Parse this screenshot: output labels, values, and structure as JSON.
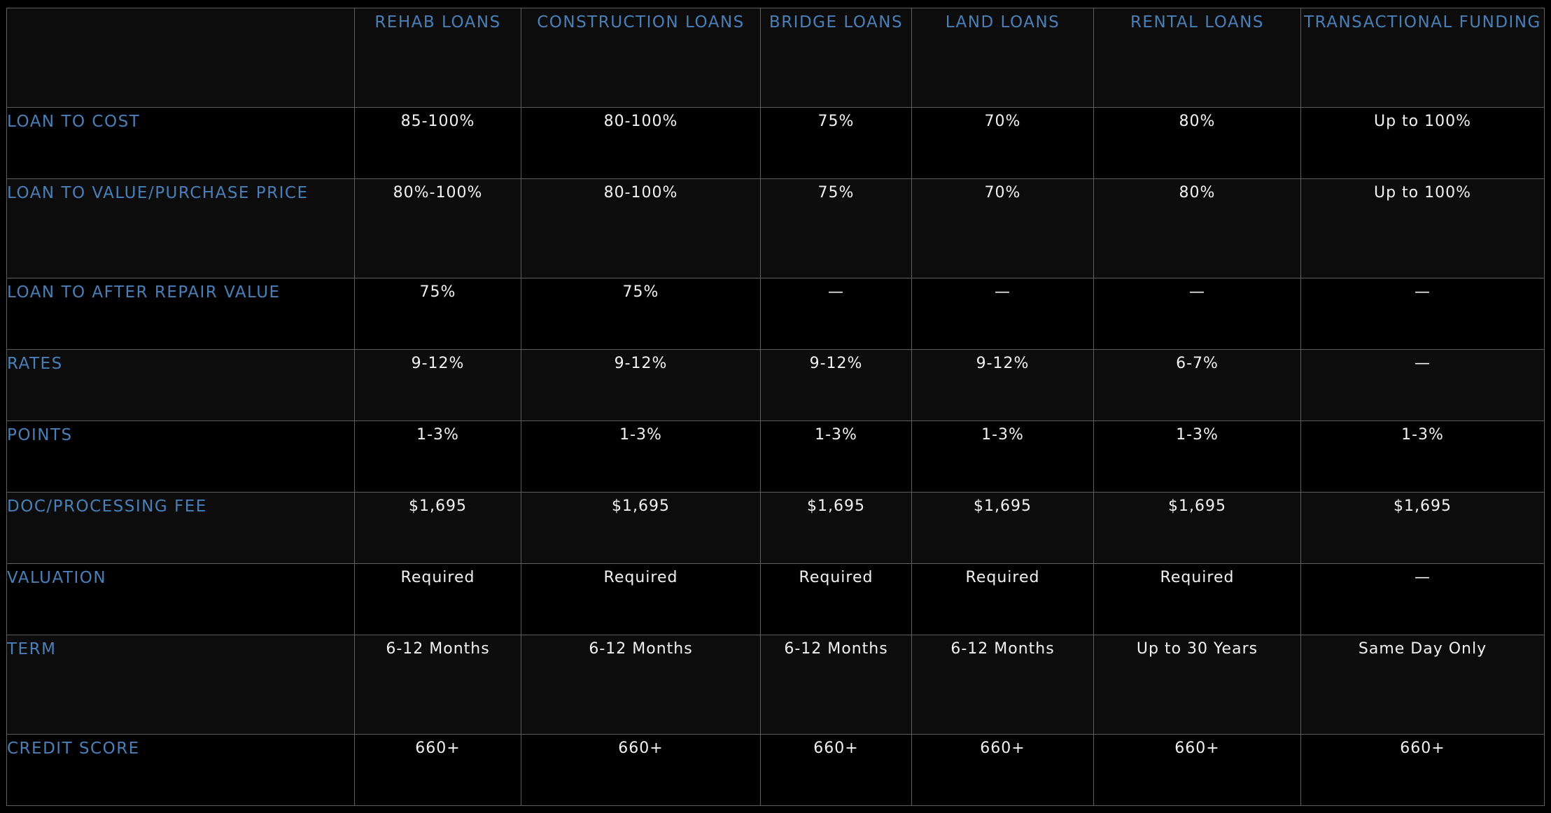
{
  "header": {
    "corner": "",
    "columns": [
      "REHAB LOANS",
      "CONSTRUCTION LOANS",
      "BRIDGE LOANS",
      "LAND LOANS",
      "RENTAL LOANS",
      "TRANSACTIONAL FUNDING"
    ]
  },
  "rows": [
    {
      "label": "LOAN TO COST",
      "values": [
        "85-100%",
        "80-100%",
        "75%",
        "70%",
        "80%",
        "Up to 100%"
      ]
    },
    {
      "label": "LOAN TO VALUE/PURCHASE PRICE",
      "values": [
        "80%-100%",
        "80-100%",
        "75%",
        "70%",
        "80%",
        "Up to 100%"
      ]
    },
    {
      "label": "LOAN TO AFTER REPAIR VALUE",
      "values": [
        "75%",
        "75%",
        "—",
        "—",
        "—",
        "—"
      ]
    },
    {
      "label": "RATES",
      "values": [
        "9-12%",
        "9-12%",
        "9-12%",
        "9-12%",
        "6-7%",
        "—"
      ]
    },
    {
      "label": "POINTS",
      "values": [
        "1-3%",
        "1-3%",
        "1-3%",
        "1-3%",
        "1-3%",
        "1-3%"
      ]
    },
    {
      "label": "DOC/PROCESSING FEE",
      "values": [
        "$1,695",
        "$1,695",
        "$1,695",
        "$1,695",
        "$1,695",
        "$1,695"
      ]
    },
    {
      "label": "VALUATION",
      "values": [
        "Required",
        "Required",
        "Required",
        "Required",
        "Required",
        "—"
      ]
    },
    {
      "label": "TERM",
      "values": [
        "6-12 Months",
        "6-12 Months",
        "6-12 Months",
        "6-12 Months",
        "Up to 30 Years",
        "Same Day Only"
      ]
    },
    {
      "label": "CREDIT SCORE",
      "values": [
        "660+",
        "660+",
        "660+",
        "660+",
        "660+",
        "660+"
      ]
    }
  ],
  "colors": {
    "background": "#000000",
    "alt_row": "#0c0c0d",
    "grid_line": "#5d5d5d",
    "heading_blue": "#4a7fb8",
    "value_text": "#f2f2f2"
  }
}
